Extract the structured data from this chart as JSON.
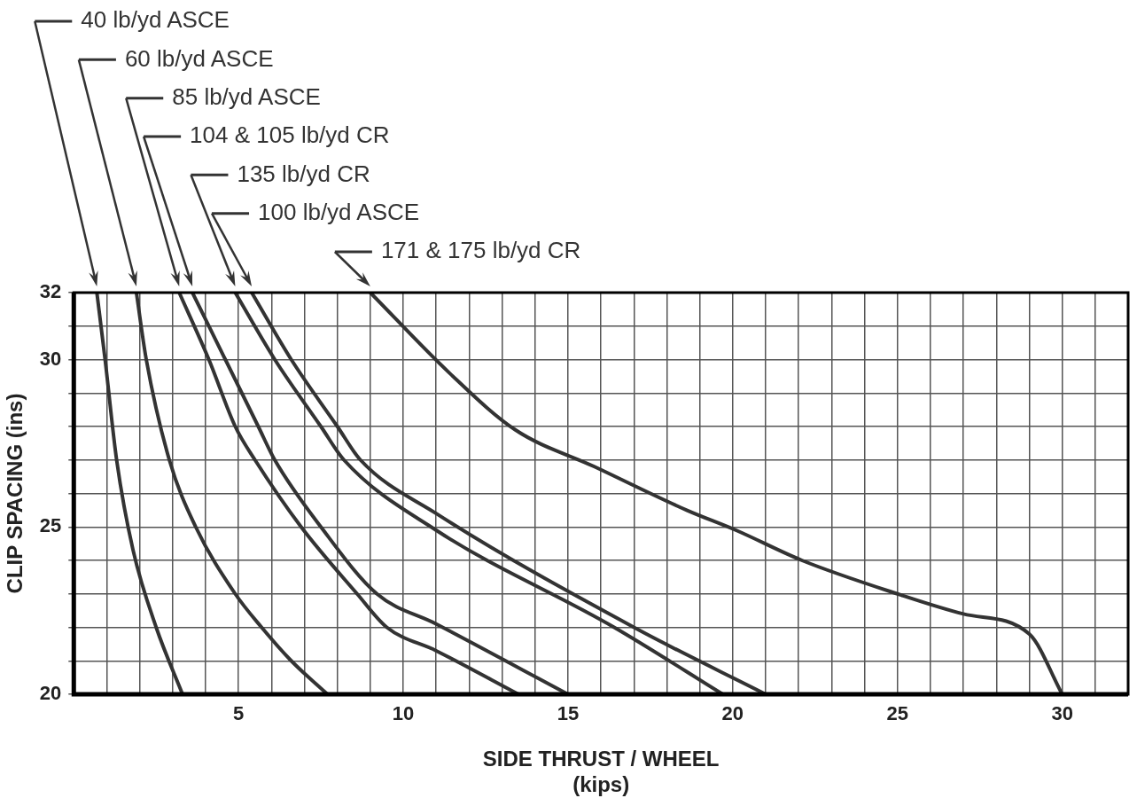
{
  "chart_data": {
    "type": "line",
    "xlabel": "SIDE THRUST / WHEEL\n(kips)",
    "ylabel": "CLIP SPACING (ins)",
    "xlim": [
      0,
      32
    ],
    "xticks": [
      {
        "value": 0,
        "label": null
      },
      {
        "value": 1,
        "label": null
      },
      {
        "value": 2,
        "label": null
      },
      {
        "value": 3,
        "label": null
      },
      {
        "value": 4,
        "label": null
      },
      5,
      {
        "value": 6,
        "label": null
      },
      {
        "value": 7,
        "label": null
      },
      {
        "value": 8,
        "label": null
      },
      {
        "value": 9,
        "label": null
      },
      10,
      {
        "value": 11,
        "label": null
      },
      {
        "value": 12,
        "label": null
      },
      {
        "value": 13,
        "label": null
      },
      {
        "value": 14,
        "label": null
      },
      15,
      {
        "value": 16,
        "label": null
      },
      {
        "value": 17,
        "label": null
      },
      {
        "value": 18,
        "label": null
      },
      {
        "value": 19,
        "label": null
      },
      20,
      {
        "value": 21,
        "label": null
      },
      {
        "value": 22,
        "label": null
      },
      {
        "value": 23,
        "label": null
      },
      {
        "value": 24,
        "label": null
      },
      25,
      {
        "value": 26,
        "label": null
      },
      {
        "value": 27,
        "label": null
      },
      {
        "value": 28,
        "label": null
      },
      {
        "value": 29,
        "label": null
      },
      30,
      {
        "value": 31,
        "label": null
      },
      {
        "value": 32,
        "label": null
      }
    ],
    "ylim": [
      20,
      32
    ],
    "yticks": [
      20,
      {
        "value": 21,
        "label": null
      },
      {
        "value": 22,
        "label": null
      },
      {
        "value": 23,
        "label": null
      },
      {
        "value": 24,
        "label": null
      },
      25,
      {
        "value": 26,
        "label": null
      },
      {
        "value": 27,
        "label": null
      },
      {
        "value": 28,
        "label": null
      },
      {
        "value": 29,
        "label": null
      },
      30,
      {
        "value": 31,
        "label": null
      },
      32
    ],
    "grid": true,
    "legend": "top left",
    "marker": "none",
    "line_style": "solid",
    "series": [
      {
        "name": "40 lb/yd ASCE",
        "color": "#333333",
        "x": [
          0.7,
          0.95,
          1.3,
          1.8,
          2.5,
          3.3
        ],
        "values": [
          32,
          30,
          27,
          24.3,
          22,
          20
        ]
      },
      {
        "name": "60 lb/yd ASCE",
        "color": "#333333",
        "x": [
          1.9,
          2.2,
          2.9,
          3.7,
          4.9,
          5.7,
          6.6,
          7.7
        ],
        "values": [
          32,
          30,
          27,
          25,
          23,
          22,
          21,
          20
        ]
      },
      {
        "name": "85 lb/yd ASCE",
        "color": "#333333",
        "x": [
          3.2,
          4.1,
          4.9,
          5.5,
          6.9,
          8.6,
          9.5,
          11,
          13.5
        ],
        "values": [
          32,
          30,
          28,
          27,
          25,
          23,
          22,
          21.3,
          20
        ]
      },
      {
        "name": "104 & 105 lb/yd CR",
        "color": "#333333",
        "x": [
          3.6,
          4.6,
          5.6,
          6.1,
          7.5,
          9.2,
          11,
          15
        ],
        "values": [
          32,
          30,
          28,
          27,
          25,
          23,
          22.1,
          20
        ]
      },
      {
        "name": "135 lb/yd CR",
        "color": "#333333",
        "x": [
          4.9,
          6.1,
          7.5,
          8.2,
          11,
          16.4,
          19.7
        ],
        "values": [
          32,
          30,
          28,
          27,
          24.9,
          22,
          20
        ]
      },
      {
        "name": "100 lb/yd ASCE",
        "color": "#333333",
        "x": [
          5.4,
          6.6,
          8,
          8.7,
          11,
          17,
          21
        ],
        "values": [
          32,
          30,
          28,
          27,
          25.4,
          22,
          20
        ]
      },
      {
        "name": "171 & 175 lb/yd CR",
        "color": "#333333",
        "x": [
          9,
          11.4,
          13.4,
          15.8,
          18.6,
          20.1,
          22.1,
          25,
          27,
          29,
          30
        ],
        "values": [
          32,
          29.6,
          27.9,
          26.8,
          25.5,
          24.9,
          24,
          23,
          22.4,
          21.8,
          20
        ]
      }
    ]
  }
}
